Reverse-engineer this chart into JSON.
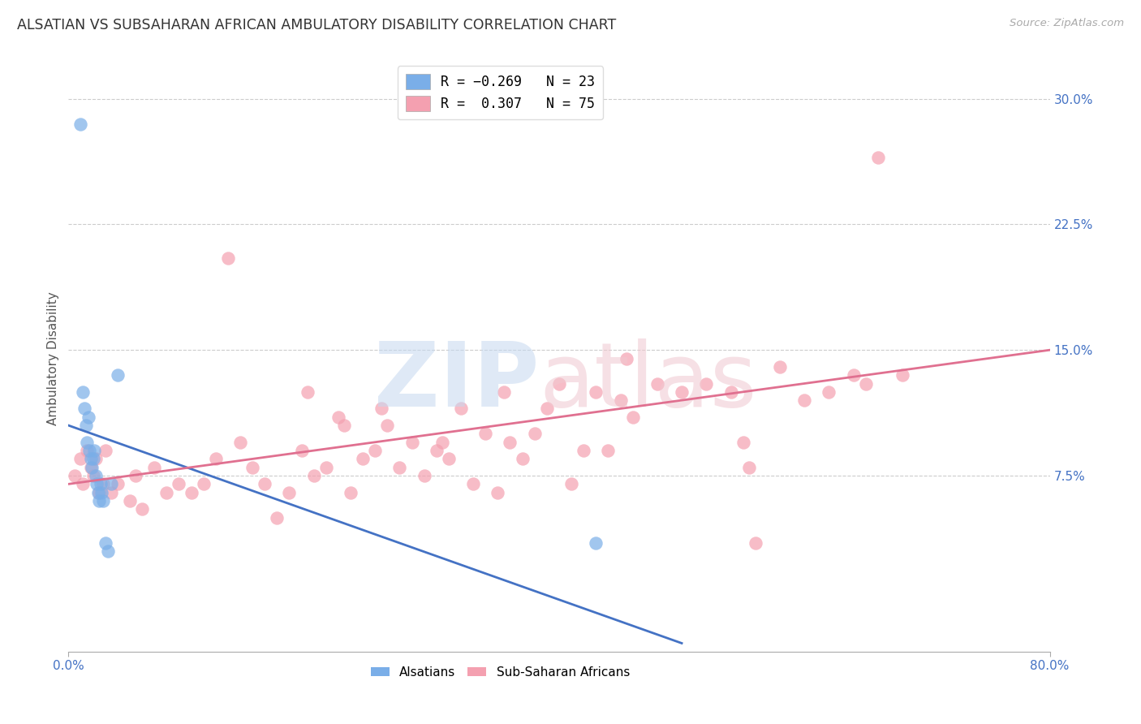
{
  "title": "ALSATIAN VS SUBSAHARAN AFRICAN AMBULATORY DISABILITY CORRELATION CHART",
  "source": "Source: ZipAtlas.com",
  "ylabel": "Ambulatory Disability",
  "ylabel_right_ticks": [
    7.5,
    15.0,
    22.5,
    30.0
  ],
  "xlim": [
    0.0,
    80.0
  ],
  "ylim": [
    -3.0,
    32.0
  ],
  "alsatian_color": "#7aaee8",
  "subsaharan_color": "#f4a0b0",
  "alsatian_line_color": "#4472c4",
  "subsaharan_line_color": "#e07090",
  "alsatian_x": [
    1.0,
    1.2,
    1.3,
    1.4,
    1.5,
    1.6,
    1.7,
    1.8,
    1.9,
    2.0,
    2.1,
    2.2,
    2.3,
    2.4,
    2.5,
    2.6,
    2.7,
    2.8,
    3.0,
    3.2,
    3.5,
    4.0,
    43.0
  ],
  "alsatian_y": [
    28.5,
    12.5,
    11.5,
    10.5,
    9.5,
    11.0,
    9.0,
    8.5,
    8.0,
    8.5,
    9.0,
    7.5,
    7.0,
    6.5,
    6.0,
    7.0,
    6.5,
    6.0,
    3.5,
    3.0,
    7.0,
    13.5,
    3.5
  ],
  "subsaharan_x": [
    0.5,
    1.0,
    1.2,
    1.5,
    1.8,
    2.0,
    2.2,
    2.5,
    2.8,
    3.0,
    3.5,
    4.0,
    5.0,
    5.5,
    6.0,
    7.0,
    8.0,
    9.0,
    10.0,
    11.0,
    12.0,
    13.0,
    14.0,
    15.0,
    16.0,
    17.0,
    18.0,
    19.0,
    20.0,
    21.0,
    22.0,
    23.0,
    24.0,
    25.0,
    26.0,
    27.0,
    28.0,
    29.0,
    30.0,
    31.0,
    32.0,
    33.0,
    34.0,
    35.0,
    36.0,
    37.0,
    38.0,
    39.0,
    40.0,
    41.0,
    42.0,
    43.0,
    44.0,
    45.0,
    46.0,
    48.0,
    50.0,
    52.0,
    54.0,
    55.0,
    56.0,
    58.0,
    60.0,
    62.0,
    64.0,
    66.0,
    68.0,
    22.5,
    30.5,
    35.5,
    25.5,
    19.5,
    45.5,
    55.5,
    65.0
  ],
  "subsaharan_y": [
    7.5,
    8.5,
    7.0,
    9.0,
    8.0,
    7.5,
    8.5,
    6.5,
    7.0,
    9.0,
    6.5,
    7.0,
    6.0,
    7.5,
    5.5,
    8.0,
    6.5,
    7.0,
    6.5,
    7.0,
    8.5,
    20.5,
    9.5,
    8.0,
    7.0,
    5.0,
    6.5,
    9.0,
    7.5,
    8.0,
    11.0,
    6.5,
    8.5,
    9.0,
    10.5,
    8.0,
    9.5,
    7.5,
    9.0,
    8.5,
    11.5,
    7.0,
    10.0,
    6.5,
    9.5,
    8.5,
    10.0,
    11.5,
    13.0,
    7.0,
    9.0,
    12.5,
    9.0,
    12.0,
    11.0,
    13.0,
    12.5,
    13.0,
    12.5,
    9.5,
    3.5,
    14.0,
    12.0,
    12.5,
    13.5,
    26.5,
    13.5,
    10.5,
    9.5,
    12.5,
    11.5,
    12.5,
    14.5,
    8.0,
    13.0
  ],
  "blue_line_x": [
    0,
    50
  ],
  "blue_line_y": [
    10.5,
    -2.5
  ],
  "pink_line_x": [
    0,
    80
  ],
  "pink_line_y": [
    7.0,
    15.0
  ]
}
